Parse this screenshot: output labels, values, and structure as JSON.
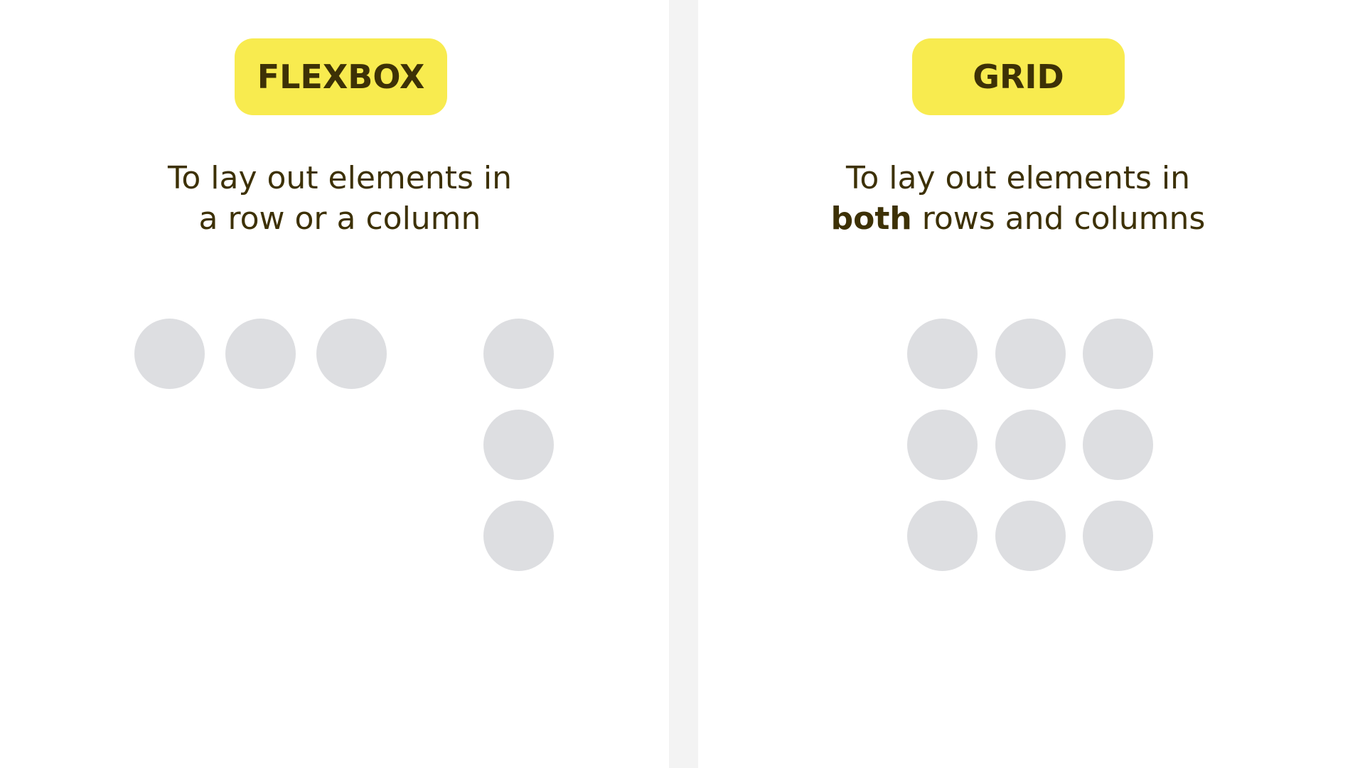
{
  "colors": {
    "badge_bg": "#f8eb4f",
    "text": "#3d3106",
    "dot": "#dddee1",
    "divider": "#f3f3f3"
  },
  "flexbox": {
    "title": "FLEXBOX",
    "description_line1": "To lay out elements in",
    "description_line2": "a row or a column",
    "row_items": 3,
    "column_items": 3
  },
  "grid": {
    "title": "GRID",
    "description_line1": "To lay out elements in",
    "description_bold": "both",
    "description_line2_rest": " rows and columns",
    "rows": 3,
    "columns": 3
  }
}
